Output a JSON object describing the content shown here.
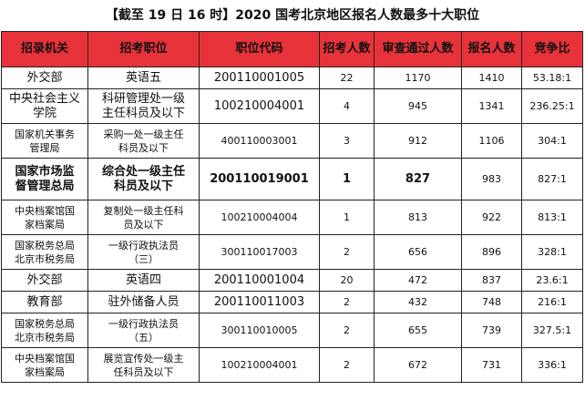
{
  "title": "【截至 19 日 16 时】2020 国考北京地区报名人数最多十大职位",
  "headers": [
    "招录机关",
    "招考职位",
    "职位代码",
    "招考人数",
    "审查通过人数",
    "报名人数",
    "竞争比"
  ],
  "rows": [
    {
      "agency": "外交部",
      "position": "英语五",
      "code": "200110001005",
      "quota": "22",
      "passed": "1170",
      "applied": "1410",
      "ratio": "53.18:1"
    },
    {
      "agency": "中央社会主义\n学院",
      "position": "科研管理处一级\n主任科员及以下",
      "code": "100210004001",
      "quota": "4",
      "passed": "945",
      "applied": "1341",
      "ratio": "236.25:1"
    },
    {
      "agency": "国家机关事务\n管理局",
      "position": "采购一处一级主任\n科员及以下",
      "code": "400110003001",
      "quota": "3",
      "passed": "912",
      "applied": "1106",
      "ratio": "304:1"
    },
    {
      "agency": "国家市场监\n督管理总局",
      "position": "综合处一级主任\n科员及以下",
      "code": "200110019001",
      "quota": "1",
      "passed": "827",
      "applied": "983",
      "ratio": "827:1"
    },
    {
      "agency": "中央档案馆国\n家档案局",
      "position": "复制处一级主任科\n员及以下",
      "code": "100210004004",
      "quota": "1",
      "passed": "813",
      "applied": "922",
      "ratio": "813:1"
    },
    {
      "agency": "国家税务总局\n北京市税务局",
      "position": "一级行政执法员\n（三）",
      "code": "300110017003",
      "quota": "2",
      "passed": "656",
      "applied": "896",
      "ratio": "328:1"
    },
    {
      "agency": "外交部",
      "position": "英语四",
      "code": "200110001004",
      "quota": "20",
      "passed": "472",
      "applied": "837",
      "ratio": "23.6:1"
    },
    {
      "agency": "教育部",
      "position": "驻外储备人员",
      "code": "200110011003",
      "quota": "2",
      "passed": "432",
      "applied": "748",
      "ratio": "216:1"
    },
    {
      "agency": "国家税务总局\n北京市税务局",
      "position": "一级行政执法员\n（五）",
      "code": "300110010005",
      "quota": "2",
      "passed": "655",
      "applied": "739",
      "ratio": "327.5:1"
    },
    {
      "agency": "中央档案馆国\n家档案局",
      "position": "展览宣传处一级主\n任科员及以下",
      "code": "100210004001",
      "quota": "2",
      "passed": "672",
      "applied": "731",
      "ratio": "336:1"
    }
  ]
}
